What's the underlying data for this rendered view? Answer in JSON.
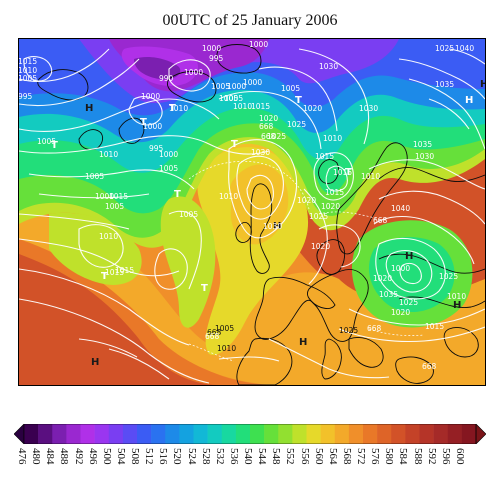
{
  "title": "00UTC of 25 January 2006",
  "colorbar": {
    "ticks": [
      "476",
      "480",
      "484",
      "488",
      "492",
      "496",
      "500",
      "504",
      "508",
      "512",
      "516",
      "520",
      "524",
      "528",
      "532",
      "536",
      "540",
      "544",
      "548",
      "552",
      "556",
      "560",
      "564",
      "568",
      "572",
      "576",
      "580",
      "584",
      "588",
      "592",
      "596",
      "600"
    ],
    "colors": [
      "#3a0050",
      "#5a0f80",
      "#7b1fb0",
      "#9a28d0",
      "#b030e8",
      "#9a36f0",
      "#7a3ef2",
      "#5a4cf4",
      "#3b5cf4",
      "#2a72f0",
      "#1d8ae8",
      "#14a2e0",
      "#12b8d6",
      "#13cbc0",
      "#18d8a0",
      "#22de7a",
      "#3ee050",
      "#66e03a",
      "#92e030",
      "#bfe12b",
      "#e6d92a",
      "#f2c12a",
      "#f3a92a",
      "#f08f2a",
      "#e97828",
      "#de6428",
      "#d25228",
      "#c44228",
      "#b53428",
      "#a52a28",
      "#951f24",
      "#851620"
    ],
    "arrow_left_color": "#2a0040",
    "arrow_right_color": "#7a1418"
  },
  "map": {
    "pressure_centers": [
      {
        "label": "H"
      },
      {
        "label": "H"
      },
      {
        "label": "H"
      },
      {
        "label": "H"
      },
      {
        "label": "H"
      },
      {
        "label": "H"
      },
      {
        "label": "H"
      },
      {
        "label": "H"
      },
      {
        "label": "H"
      },
      {
        "label": "H"
      },
      {
        "label": "T"
      },
      {
        "label": "T"
      },
      {
        "label": "T"
      },
      {
        "label": "T"
      },
      {
        "label": "T"
      },
      {
        "label": "T"
      },
      {
        "label": "T"
      },
      {
        "label": "T"
      },
      {
        "label": "T"
      }
    ],
    "contour_labels": [
      "1015",
      "1010",
      "1005",
      "995",
      "1000",
      "990",
      "1000",
      "995",
      "1000",
      "1005",
      "1000",
      "1000",
      "1005",
      "1010",
      "1015",
      "1020",
      "1025",
      "1020",
      "1030",
      "1005",
      "1000",
      "1005",
      "1010",
      "1000",
      "995",
      "1000",
      "1005",
      "1010",
      "1005",
      "1015",
      "668",
      "1025",
      "1030",
      "1020",
      "1025",
      "1020",
      "1015",
      "1015",
      "1010",
      "1015",
      "1005",
      "1000",
      "1005",
      "1010",
      "1015",
      "1005",
      "1010",
      "668",
      "1025",
      "1020",
      "1005",
      "1010",
      "1015",
      "1025",
      "1020",
      "1040",
      "1035",
      "1030",
      "1025",
      "1020",
      "1010",
      "668",
      "1015",
      "1030",
      "1025",
      "1035",
      "1040",
      "1035",
      "1030",
      "1010",
      "1000"
    ],
    "geopotential_labels": [
      "668",
      "668",
      "668",
      "668"
    ]
  }
}
